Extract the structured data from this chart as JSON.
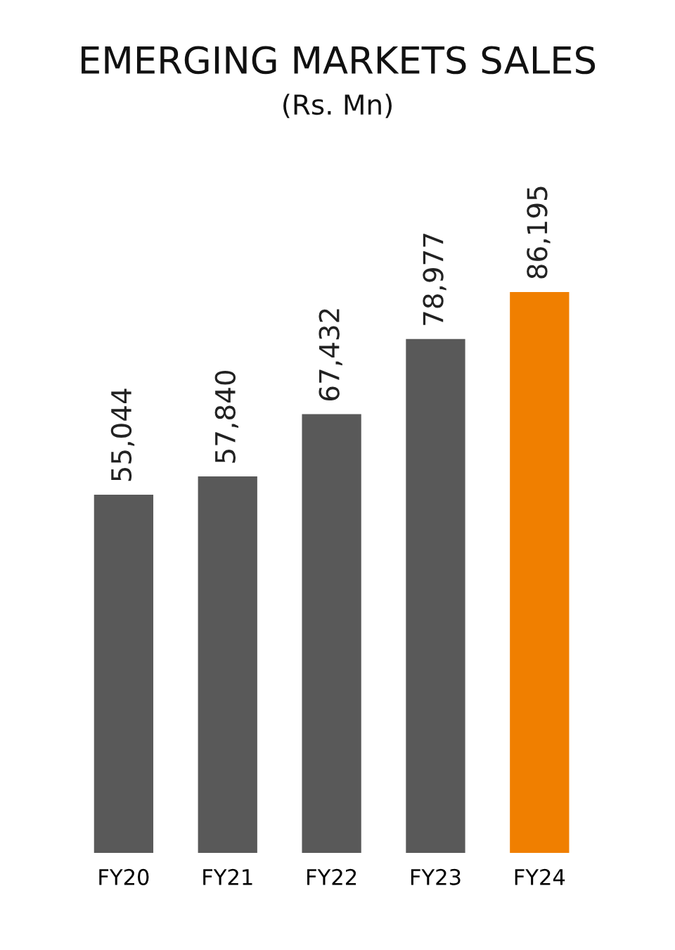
{
  "chart_data": {
    "type": "bar",
    "title": "EMERGING MARKETS SALES",
    "subtitle": "(Rs. Mn)",
    "categories": [
      "FY20",
      "FY21",
      "FY22",
      "FY23",
      "FY24"
    ],
    "values": [
      55044,
      57840,
      67432,
      78977,
      86195
    ],
    "colors": [
      "#595959",
      "#595959",
      "#595959",
      "#595959",
      "#f07f00"
    ],
    "value_labels": [
      "55,044",
      "57,840",
      "67,432",
      "78,977",
      "86,195"
    ],
    "tick_labels": "x",
    "grid": false,
    "legend": false
  }
}
